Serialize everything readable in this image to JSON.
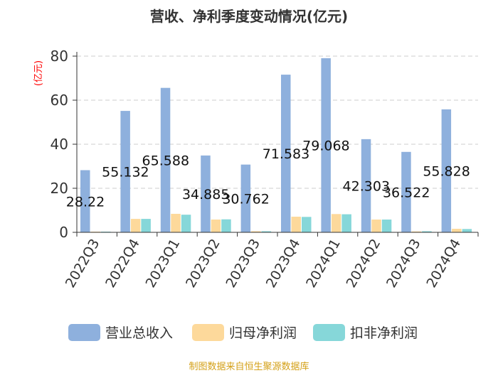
{
  "chart_data": {
    "type": "bar",
    "title": "营收、净利季度变动情况(亿元)",
    "ylabel": "(亿元)",
    "xlabel": "",
    "ylim": [
      0,
      80
    ],
    "yticks": [
      0,
      20,
      40,
      60,
      80
    ],
    "grid": true,
    "legend_position": "bottom",
    "categories": [
      "2022Q3",
      "2022Q4",
      "2023Q1",
      "2023Q2",
      "2023Q3",
      "2023Q4",
      "2024Q1",
      "2024Q2",
      "2024Q3",
      "2024Q4"
    ],
    "series": [
      {
        "name": "营业总收入",
        "color": "#8eb0dd",
        "values": [
          28.22,
          55.132,
          65.588,
          34.885,
          30.762,
          71.583,
          79.068,
          42.303,
          36.522,
          55.828
        ],
        "labels": [
          "28.22",
          "55.132",
          "65.588",
          "34.885",
          "30.762",
          "71.583",
          "79.068",
          "42.303",
          "36.522",
          "55.828"
        ]
      },
      {
        "name": "归母净利润",
        "color": "#fdd99b",
        "values": [
          0.3,
          6.1,
          8.4,
          5.8,
          0.5,
          7.1,
          8.3,
          5.8,
          0.4,
          1.6
        ]
      },
      {
        "name": "扣非净利润",
        "color": "#86d7d9",
        "values": [
          0.3,
          6.1,
          8.0,
          5.9,
          0.5,
          7.0,
          8.2,
          5.8,
          0.5,
          1.5
        ]
      }
    ]
  },
  "footer": "制图数据来自恒生聚源数据库"
}
